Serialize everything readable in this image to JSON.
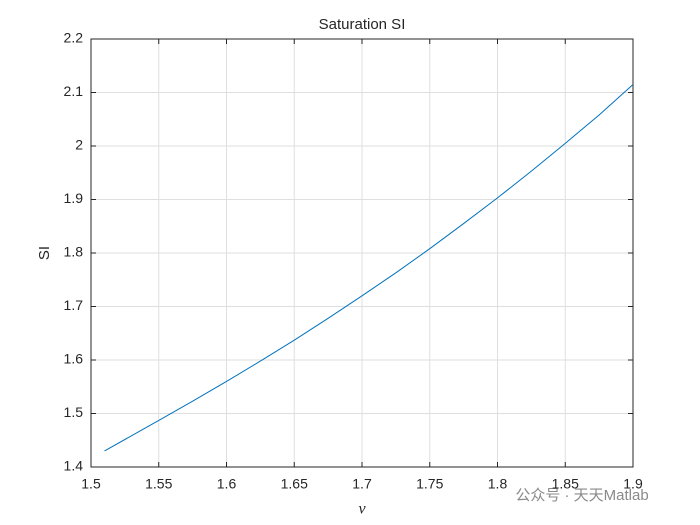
{
  "chart_data": {
    "type": "line",
    "title": "Saturation SI",
    "xlabel": "ν",
    "ylabel": "SI",
    "x": [
      1.51,
      1.55,
      1.575,
      1.6,
      1.625,
      1.65,
      1.675,
      1.7,
      1.725,
      1.75,
      1.775,
      1.8,
      1.825,
      1.85,
      1.875,
      1.9
    ],
    "series": [
      {
        "name": "SI",
        "color": "#0072bd",
        "values": [
          1.43,
          1.487,
          1.523,
          1.56,
          1.598,
          1.637,
          1.678,
          1.72,
          1.763,
          1.808,
          1.855,
          1.903,
          1.953,
          2.005,
          2.058,
          2.115
        ]
      }
    ],
    "xlim": [
      1.5,
      1.9
    ],
    "xticks": [
      1.5,
      1.55,
      1.6,
      1.65,
      1.7,
      1.75,
      1.8,
      1.85,
      1.9
    ],
    "ylim": [
      1.4,
      2.2
    ],
    "yticks": [
      1.4,
      1.5,
      1.6,
      1.7,
      1.8,
      1.9,
      2,
      2.1,
      2.2
    ],
    "grid": true
  },
  "watermark": "公众号 · 天天Matlab"
}
